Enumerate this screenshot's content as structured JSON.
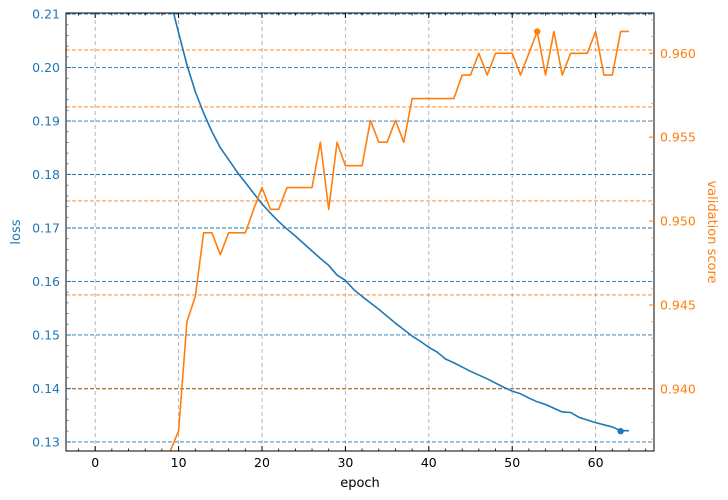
{
  "chart_data": {
    "type": "line",
    "xlabel": "epoch",
    "ylabel_left": "loss",
    "ylabel_right": "validation score",
    "xlim": [
      -3.5,
      67
    ],
    "ylim_left": [
      0.1283,
      0.2102
    ],
    "ylim_right": [
      0.9363,
      0.9624
    ],
    "x_ticks": [
      0,
      10,
      20,
      30,
      40,
      50,
      60
    ],
    "y_left_ticks": [
      0.13,
      0.14,
      0.15,
      0.16,
      0.17,
      0.18,
      0.19,
      0.2,
      0.21
    ],
    "y_right_ticks": [
      0.94,
      0.945,
      0.95,
      0.955,
      0.96
    ],
    "grid": true,
    "colors": {
      "loss": "#1f77b4",
      "validation": "#ff7f0e",
      "grid_x": "#b0b0b0"
    },
    "series": [
      {
        "axis": "left",
        "color": "#1f77b4",
        "x": [
          9.4,
          10,
          11,
          12,
          13,
          14,
          15,
          16,
          17,
          18,
          19,
          20,
          21,
          22,
          23,
          24,
          25,
          26,
          27,
          28,
          29,
          30,
          31,
          32,
          33,
          34,
          35,
          36,
          37,
          38,
          39,
          40,
          41,
          42,
          43,
          44,
          45,
          46,
          47,
          48,
          49,
          50,
          51,
          52,
          53,
          54,
          55,
          56,
          57,
          58,
          59,
          60,
          61,
          62,
          63,
          64
        ],
        "values": [
          0.2102,
          0.2065,
          0.2005,
          0.1955,
          0.1915,
          0.188,
          0.185,
          0.1828,
          0.1805,
          0.1785,
          0.1765,
          0.1745,
          0.1728,
          0.1712,
          0.1698,
          0.1685,
          0.1671,
          0.1657,
          0.1643,
          0.163,
          0.1612,
          0.1602,
          0.1585,
          0.1572,
          0.156,
          0.1548,
          0.1535,
          0.1522,
          0.151,
          0.1498,
          0.1488,
          0.1477,
          0.1468,
          0.1455,
          0.1448,
          0.144,
          0.1432,
          0.1425,
          0.1418,
          0.141,
          0.1402,
          0.1395,
          0.139,
          0.1382,
          0.1375,
          0.137,
          0.1363,
          0.1356,
          0.1355,
          0.1346,
          0.1341,
          0.1336,
          0.1332,
          0.1328,
          0.1321,
          0.1321
        ],
        "best_marker": {
          "x": 63,
          "value": 0.132
        }
      },
      {
        "axis": "right",
        "color": "#ff7f0e",
        "x": [
          9,
          10,
          11,
          12,
          13,
          14,
          15,
          16,
          17,
          18,
          19,
          20,
          21,
          22,
          23,
          24,
          25,
          26,
          27,
          28,
          29,
          30,
          31,
          32,
          33,
          34,
          35,
          36,
          37,
          38,
          39,
          40,
          41,
          42,
          43,
          44,
          45,
          46,
          47,
          48,
          49,
          50,
          51,
          52,
          53,
          54,
          55,
          56,
          57,
          58,
          59,
          60,
          61,
          62,
          63,
          64
        ],
        "values": [
          0.9363,
          0.9375,
          0.944,
          0.9455,
          0.9493,
          0.9493,
          0.948,
          0.9493,
          0.9493,
          0.9493,
          0.9507,
          0.952,
          0.9507,
          0.9507,
          0.952,
          0.952,
          0.952,
          0.952,
          0.9547,
          0.9507,
          0.9547,
          0.9533,
          0.9533,
          0.9533,
          0.956,
          0.9547,
          0.9547,
          0.956,
          0.9547,
          0.9573,
          0.9573,
          0.9573,
          0.9573,
          0.9573,
          0.9573,
          0.9587,
          0.9587,
          0.96,
          0.9587,
          0.96,
          0.96,
          0.96,
          0.9587,
          0.96,
          0.9613,
          0.9587,
          0.9613,
          0.9587,
          0.96,
          0.96,
          0.96,
          0.9613,
          0.9587,
          0.9587,
          0.9613,
          0.9613
        ],
        "best_marker": {
          "x": 53,
          "value": 0.9613
        }
      }
    ],
    "hlines_right": [
      0.94,
      0.9456,
      0.9512,
      0.9568,
      0.9602
    ]
  }
}
